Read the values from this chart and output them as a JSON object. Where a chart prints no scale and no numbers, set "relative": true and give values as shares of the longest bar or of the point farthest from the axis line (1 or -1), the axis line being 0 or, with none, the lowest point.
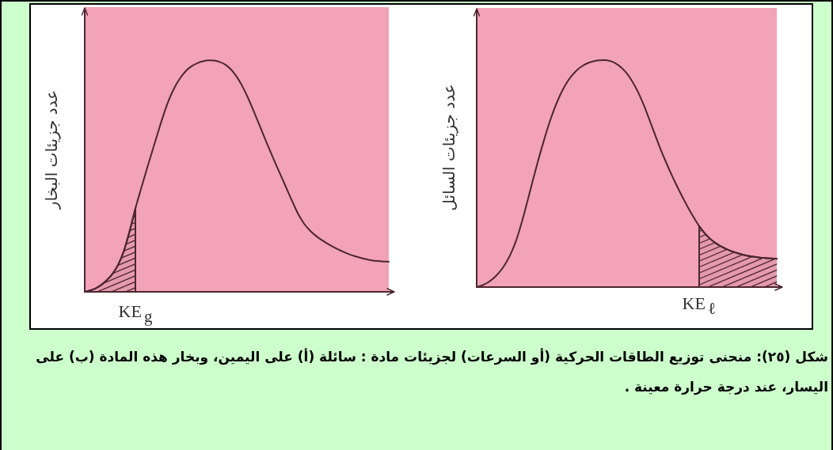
{
  "chart_data": [
    {
      "type": "line",
      "relative": true,
      "ylabel": "عدد جزيئات البخار",
      "categories": [
        null,
        null,
        null,
        null,
        null,
        null,
        null,
        null,
        null,
        null,
        null,
        null,
        null,
        null,
        null,
        null,
        null,
        null,
        null,
        null,
        null,
        null,
        null,
        null,
        null,
        null,
        null,
        null,
        null,
        null,
        null,
        null,
        null,
        null,
        null,
        null,
        null,
        null,
        null,
        null,
        null,
        null,
        null,
        null,
        null,
        null,
        null,
        null,
        null,
        null,
        null,
        null,
        null,
        null,
        null
      ],
      "series": [
        {
          "color": "#4b2631",
          "values": [
            0,
            0.006,
            0.016,
            0.031,
            0.052,
            0.08,
            0.12,
            0.18,
            0.265,
            0.36,
            0.445,
            0.528,
            0.608,
            0.688,
            0.765,
            0.832,
            0.885,
            0.925,
            0.955,
            0.975,
            0.988,
            0.996,
            1,
            0.999,
            0.993,
            0.981,
            0.96,
            0.929,
            0.888,
            0.838,
            0.781,
            0.722,
            0.662,
            0.604,
            0.548,
            0.493,
            0.438,
            0.383,
            0.332,
            0.293,
            0.265,
            0.243,
            0.225,
            0.21,
            0.196,
            0.183,
            0.172,
            0.162,
            0.154,
            0.147,
            0.141,
            0.136,
            0.133,
            0.131,
            0.13
          ]
        },
        {
          "type": "area",
          "color": "#4b2631",
          "values": [
            0,
            0.006,
            0.016,
            0.031,
            0.052,
            0.08,
            0.12,
            0.18,
            0.265,
            0.36,
            null,
            null,
            null,
            null,
            null,
            null,
            null,
            null,
            null,
            null,
            null,
            null,
            null,
            null,
            null,
            null,
            null,
            null,
            null,
            null,
            null,
            null,
            null,
            null,
            null,
            null,
            null,
            null,
            null,
            null,
            null,
            null,
            null,
            null,
            null,
            null,
            null,
            null,
            null,
            null,
            null,
            null,
            null,
            null,
            null
          ]
        }
      ],
      "annotations": [
        "KE$_{g}$",
        "شكل (٢٥): منحنى توزيع الطاقات الحركية (أو السرعات) لجزيئات مادة : سائلة (أ) على اليمين، وبخار هذه المادة (ب) على اليسار، عند درجة حرارة معينة ."
      ]
    },
    {
      "type": "line",
      "relative": true,
      "ylabel": "عدد جزيئات السائل",
      "categories": [
        null,
        null,
        null,
        null,
        null,
        null,
        null,
        null,
        null,
        null,
        null,
        null,
        null,
        null,
        null,
        null,
        null,
        null,
        null,
        null,
        null,
        null,
        null,
        null,
        null,
        null,
        null,
        null,
        null,
        null,
        null,
        null,
        null,
        null,
        null,
        null,
        null,
        null,
        null,
        null,
        null,
        null,
        null,
        null,
        null,
        null,
        null,
        null,
        null,
        null,
        null,
        null,
        null,
        null,
        null
      ],
      "series": [
        {
          "color": "#4b2631",
          "values": [
            0,
            0.008,
            0.02,
            0.038,
            0.063,
            0.096,
            0.14,
            0.198,
            0.276,
            0.366,
            0.46,
            0.552,
            0.638,
            0.718,
            0.787,
            0.845,
            0.892,
            0.928,
            0.955,
            0.974,
            0.987,
            0.995,
            0.999,
            1,
            0.996,
            0.986,
            0.968,
            0.942,
            0.906,
            0.861,
            0.806,
            0.743,
            0.677,
            0.613,
            0.554,
            0.499,
            0.447,
            0.398,
            0.352,
            0.309,
            0.27,
            0.238,
            0.213,
            0.194,
            0.179,
            0.167,
            0.157,
            0.149,
            0.142,
            0.137,
            0.133,
            0.13,
            0.128,
            0.126,
            0.125
          ]
        },
        {
          "type": "area",
          "color": "#4b2631",
          "values": [
            null,
            null,
            null,
            null,
            null,
            null,
            null,
            null,
            null,
            null,
            null,
            null,
            null,
            null,
            null,
            null,
            null,
            null,
            null,
            null,
            null,
            null,
            null,
            null,
            null,
            null,
            null,
            null,
            null,
            null,
            null,
            null,
            null,
            null,
            null,
            null,
            null,
            null,
            null,
            null,
            0.27,
            0.238,
            0.213,
            0.194,
            0.179,
            0.167,
            0.157,
            0.149,
            0.142,
            0.137,
            0.133,
            0.13,
            0.128,
            0.126,
            0.125
          ]
        }
      ],
      "annotations": [
        "KE$_{ℓ}$"
      ]
    }
  ]
}
